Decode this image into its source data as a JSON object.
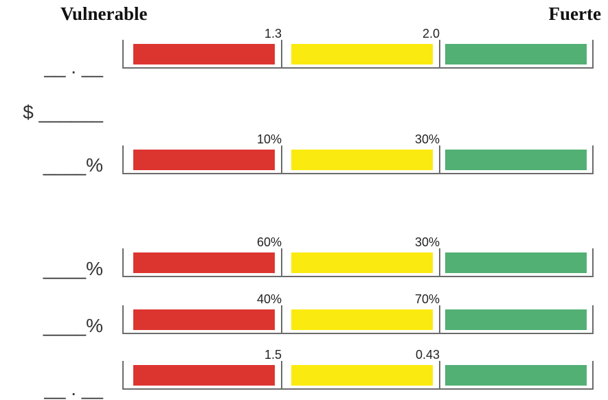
{
  "header": {
    "left": "Vulnerable",
    "right": "Fuerte"
  },
  "colors": {
    "red": "#dc3530",
    "yellow": "#fbea0f",
    "green": "#52b074"
  },
  "inputs": {
    "ratio1": "__ . __",
    "money": "$ ______",
    "pct1": "____%",
    "pct2": "____%",
    "pct3": "____%",
    "ratio2": "__ . __"
  },
  "gauges": [
    {
      "low": "1.3",
      "high": "2.0"
    },
    {
      "low": "10%",
      "high": "30%"
    },
    {
      "low": "60%",
      "high": "30%"
    },
    {
      "low": "40%",
      "high": "70%"
    },
    {
      "low": "1.5",
      "high": "0.43"
    }
  ]
}
